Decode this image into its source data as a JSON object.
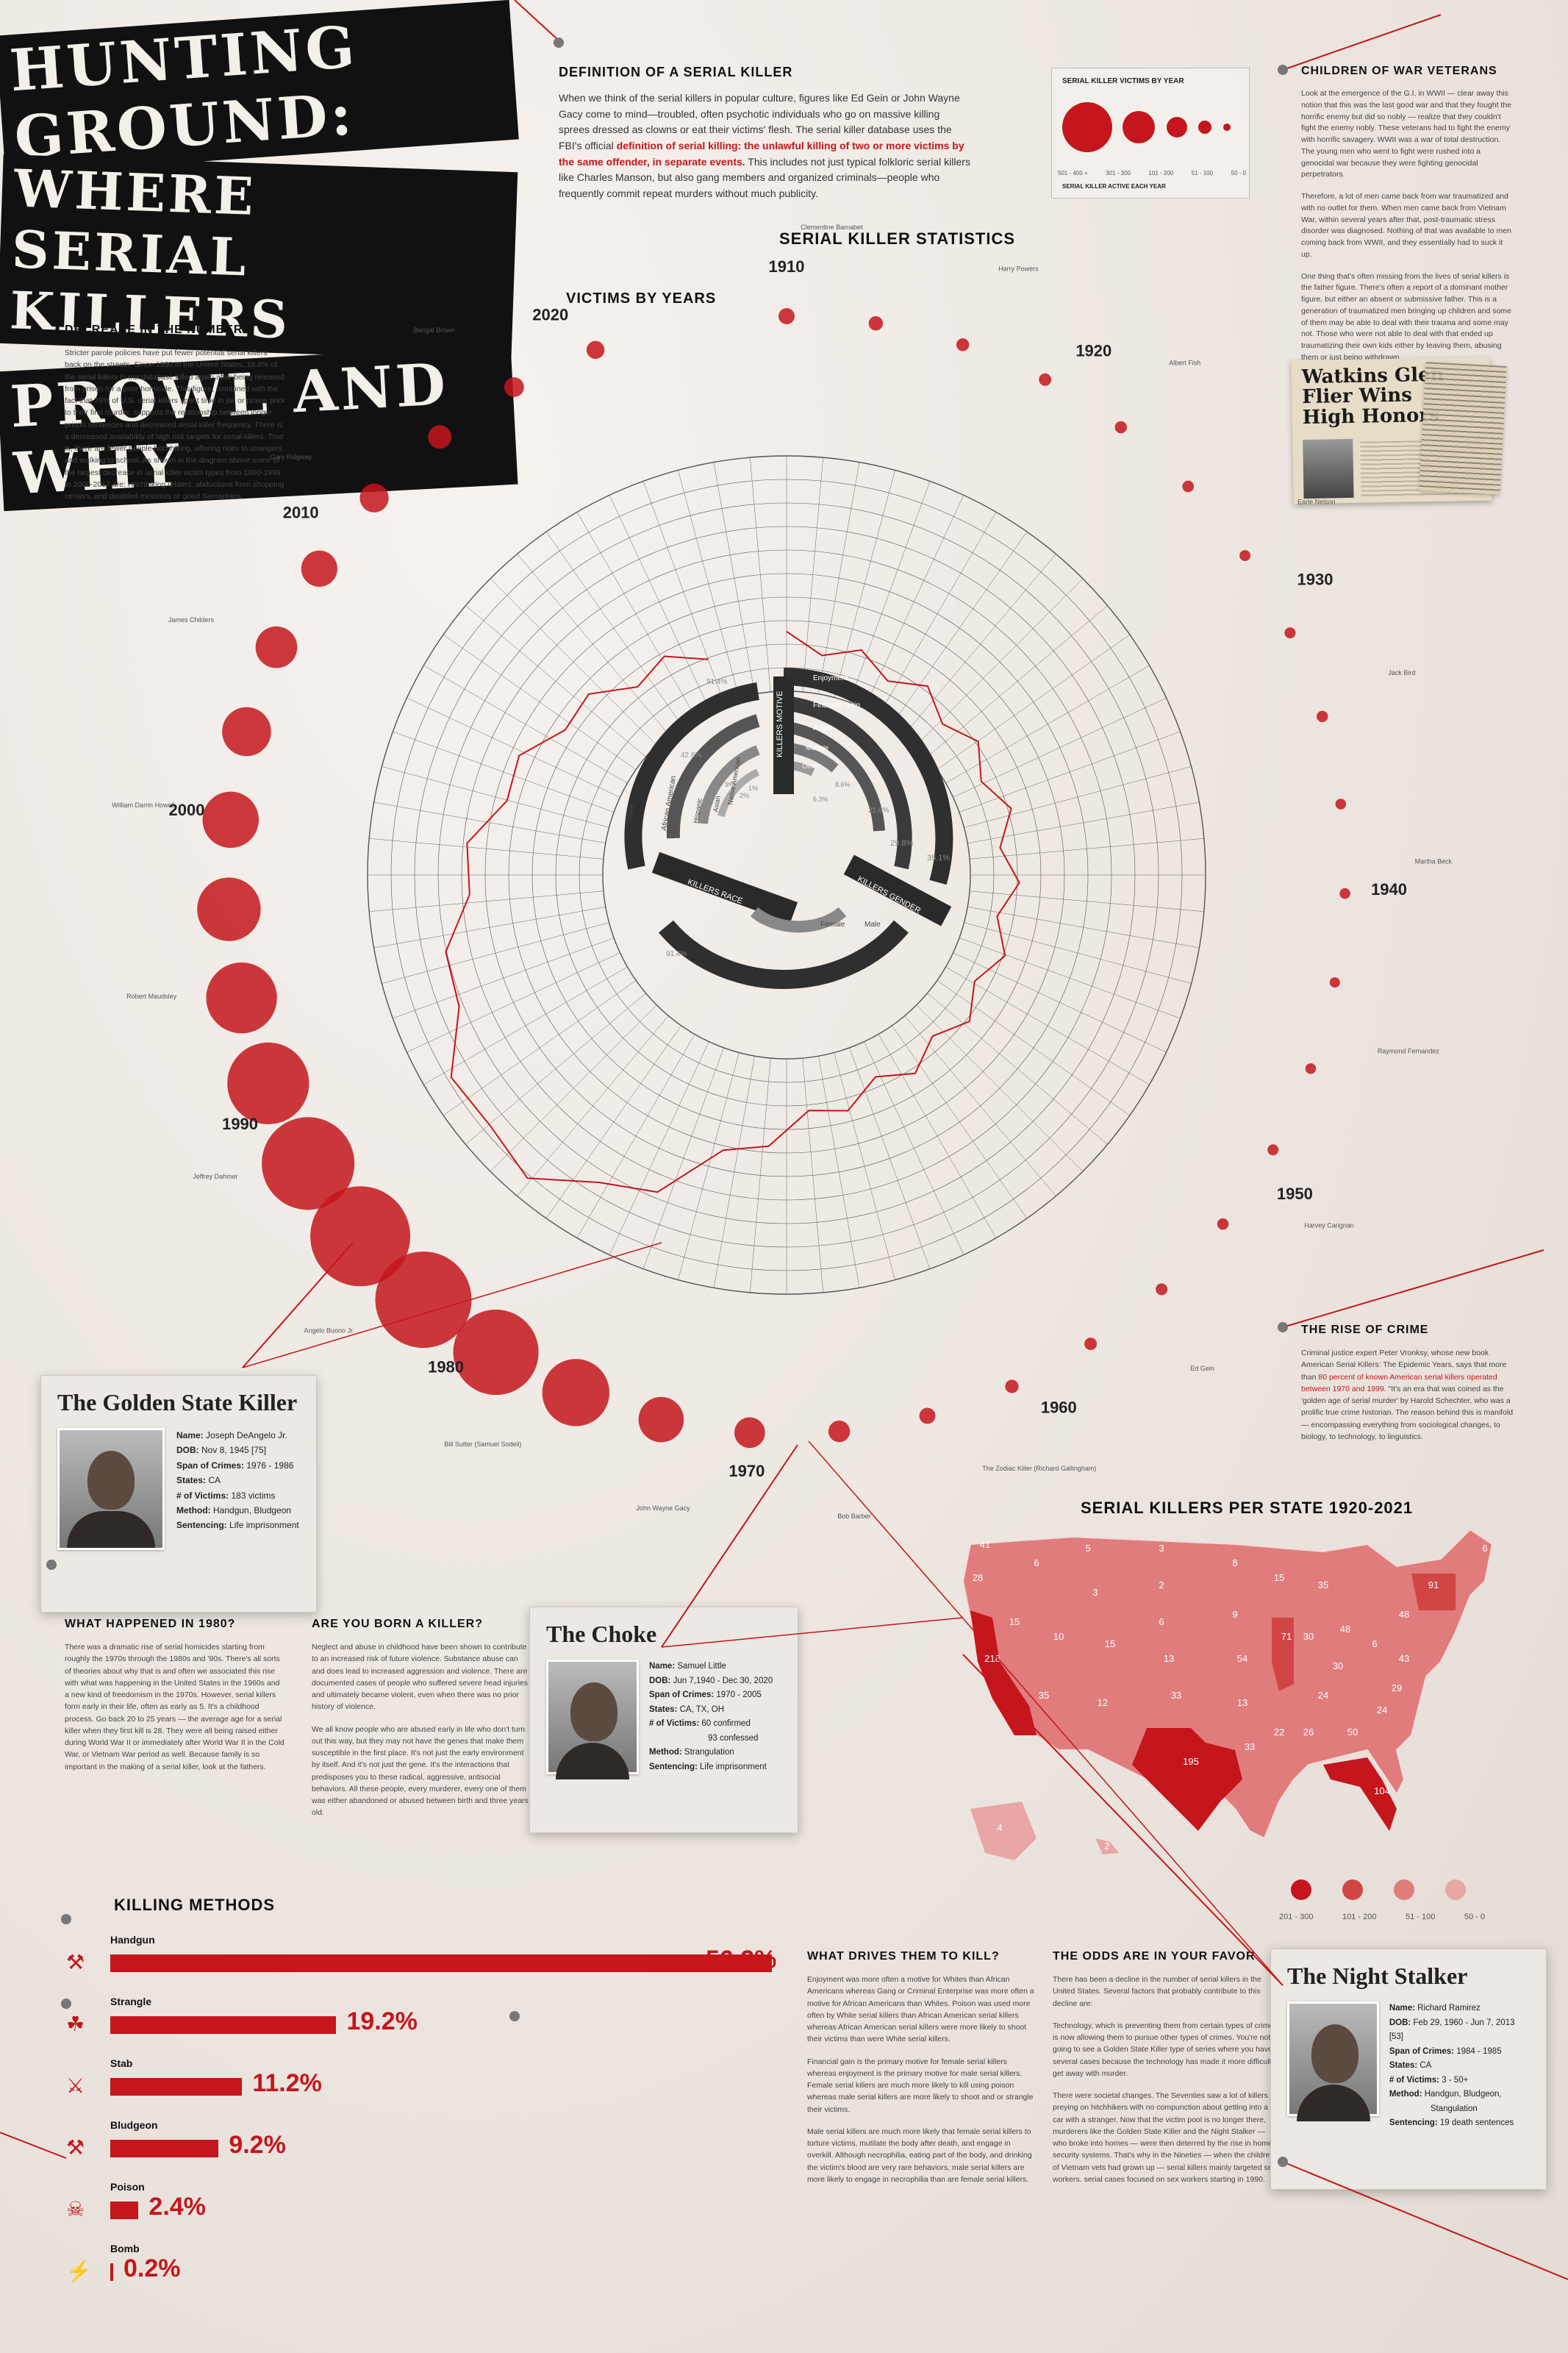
{
  "title": {
    "line1": "HUNTING GROUND:",
    "line2": "WHERE SERIAL KILLERS",
    "line3": "PROWL AND WHY"
  },
  "definition": {
    "heading": "DEFINITION OF A SERIAL KILLER",
    "text_a": "When we think of the serial killers in popular culture, figures like Ed Gein or John Wayne Gacy come to mind—troubled, often psychotic individuals who go on massive killing sprees dressed as clowns or eat their victims' flesh. The serial killer database uses the FBI's official ",
    "text_red": "definition  of serial killing: the unlawful killing of two or more victims by the same offender, in separate events.",
    "text_b": " This includes not just typical folkloric serial killers like Charles Manson, but also gang members and organized criminals—people who frequently commit repeat murders without much publicity."
  },
  "legend": {
    "title": "SERIAL KILLER VICTIMS BY YEAR",
    "labels": [
      "501 - 400 +",
      "301 - 300",
      "101 - 200",
      "51 - 100",
      "50 - 0"
    ],
    "footer": "SERIAL KILLER ACTIVE EACH YEAR"
  },
  "veterans": {
    "heading": "CHILDREN OF WAR VETERANS",
    "p1": "Look at the emergence of the G.I. in WWII — clear away this notion that this was the last good war and that they fought the horrific enemy but did so nobly — realize that they couldn't fight the enemy nobly. These veterans had to fight the enemy with horrific savagery. WWII was a war of total destruction. The young men who went to fight were rushed into a genocidal war because they were fighting genocidal perpetrators.",
    "p2": "Therefore, a lot of men came back from war traumatized and with no outlet for them. When men came back from Vietnam War, within several years after that, post-traumatic stress disorder was diagnosed. Nothing of that was available to men coming back from WWII, and they essentially had to suck it up.",
    "p3": "One thing that's often missing from the lives of serial killers is the father figure. There's often a report of a dominant mother figure, but either an absent or submissive father. This is a generation of traumatized men bringing up children and some of them may be able to deal with their trauma and some may not. Those who were not able to deal with that ended up traumatizing their own kids either by leaving them, abusing them or just being withdrawn."
  },
  "newspaper": {
    "headline1": "Watkins Glen",
    "headline2": "Flier Wins",
    "headline3": "High Honors"
  },
  "decrease": {
    "heading": "DECREASE IN THE NUMBERS",
    "text": "Stricter parole policies have put fewer potential serial killers back on the streets. Since 1950 in the United States, 16.8% of the serial killers in our database killed again after being released from prison for a prior homicide. This figure, combined with the fact that 79% of U.S. serial killers spent time in jail or prison prior to their first murder, supports the relationship between longer prison sentences and decreased serial killer frequency. There is a decreased availability of high risk targets for serial killers. That is, there are fewer people hitchhiking, offering rides to strangers, and walking to school. As shown in the diagram above some of the largest decrease in serial killer victim types from 1980-1999 to 2000-2017 are: Hitchhiking related, abductions from shopping centers, and disabled motorists or good Samaritans."
  },
  "stats": {
    "heading": "SERIAL KILLER STATISTICS",
    "victims_heading": "VICTIMS BY YEARS",
    "decade_labels": [
      "1910",
      "1920",
      "1930",
      "1940",
      "1950",
      "1960",
      "1970",
      "1980",
      "1990",
      "2000",
      "2010",
      "2020"
    ],
    "motive_title": "KILLERS MOTIVE",
    "race_title": "KILLERS RACE",
    "gender_title": "KILLERS GENDER",
    "motive_items": [
      {
        "label": "Enjoyment",
        "value": "35.1%"
      },
      {
        "label": "Financial Gain",
        "value": "29.8%"
      },
      {
        "label": "Anger",
        "value": "21.6%"
      },
      {
        "label": "Multiple",
        "value": "8.6%"
      },
      {
        "label": "Other",
        "value": "6.3%"
      }
    ],
    "race_items": [
      {
        "label": "White",
        "value": "91.4%"
      },
      {
        "label": "African American",
        "value": "42.6%"
      },
      {
        "label": "Hispanic",
        "value": "9%"
      },
      {
        "label": "Asian",
        "value": "2%"
      },
      {
        "label": "Native American",
        "value": "1%"
      }
    ],
    "gender_items": [
      {
        "label": "Male",
        "value": "91.4%"
      },
      {
        "label": "Female",
        "value": "8.6%"
      }
    ],
    "killer_names": [
      "Clementine Barnabet",
      "Harry Powers",
      "Albert Fish",
      "Earle Nelson",
      "Jack Bird",
      "Martha Beck",
      "Raymond Fernandez",
      "Harvey Carignan",
      "Ed Gein",
      "The Zodiac Killer (Richard Gallingham)",
      "Bob Barber",
      "John Wayne Gacy",
      "Bill Sutter (Samuel Sodeii)",
      "Angelo Buono Jr.",
      "Jeffrey Dahmer",
      "Robert Maudsley",
      "William Darrin Howell",
      "James Childers",
      "Gary Ridgway",
      "Bengal Brown"
    ]
  },
  "chart_data": {
    "type": "scatter",
    "title": "VICTIMS BY YEARS",
    "xlabel": "",
    "ylabel": "",
    "x": [
      1910,
      1913,
      1916,
      1919,
      1922,
      1925,
      1928,
      1931,
      1934,
      1937,
      1940,
      1943,
      1946,
      1949,
      1952,
      1955,
      1958,
      1961,
      1964,
      1967,
      1970,
      1973,
      1976,
      1979,
      1982,
      1985,
      1988,
      1991,
      1994,
      1997,
      2000,
      2003,
      2006,
      2009,
      2012,
      2015,
      2018,
      2021
    ],
    "series": [
      {
        "values": [
          40,
          30,
          22,
          20,
          18,
          15,
          12,
          12,
          14,
          10,
          10,
          8,
          10,
          12,
          14,
          16,
          20,
          25,
          40,
          70,
          120,
          200,
          320,
          420,
          480,
          500,
          460,
          400,
          340,
          300,
          260,
          220,
          180,
          150,
          110,
          80,
          60,
          50
        ]
      }
    ],
    "xlim": [
      1910,
      2021
    ],
    "grid": true,
    "legend": "top-right"
  },
  "golden_state": {
    "title": "The Golden State Killer",
    "name": "Joseph DeAngelo Jr.",
    "dob": "Nov 8, 1945 [75]",
    "span": "1976 - 1986",
    "states": "CA",
    "victims": "183  victims",
    "method": "Handgun, Bludgeon",
    "sentencing": "Life imprisonment"
  },
  "choke": {
    "title": "The Choke",
    "name": "Samuel Little",
    "dob": "Jun 7,1940 - Dec 30, 2020",
    "span": "1970 - 2005",
    "states": "CA, TX, OH",
    "victims": "60 confirmed",
    "victims2": "93 confessed",
    "method": "Strangulation",
    "sentencing": "Life imprisonment"
  },
  "night_stalker": {
    "title": "The Night Stalker",
    "name": "Richard Ramirez",
    "dob": "Feb 29, 1960 - Jun 7, 2013 [53]",
    "span": "1984 - 1985",
    "states": "CA",
    "victims": "3 - 50+",
    "method": "Handgun, Bludgeon,",
    "method2": "Stangulation",
    "sentencing": "19 death sentences"
  },
  "card_labels": {
    "name": "Name:",
    "dob": "DOB:",
    "span": "Span of Crimes:",
    "states": "States:",
    "victims": "# of Victims:",
    "method": "Method:",
    "sentencing": "Sentencing:"
  },
  "what_1980": {
    "heading": "WHAT HAPPENED IN 1980?",
    "text": "There was a dramatic rise of serial homicides starting from roughly the 1970s through the 1980s and '90s. There's all sorts of theories about why that is and often we associated this rise with what was happening in the United States in the 1960s and a new kind of freedomism in the 1970s. However, serial killers form early in their life, often as early as 5. It's a childhood process. Go back 20 to 25 years — the average age for a serial killer when they first kill is 28. They were all being raised either during World War II or immediately after World War II in the Cold War, or Vietnam War period as well. Because family is so important in the making of a serial killer, look at the fathers."
  },
  "born_killer": {
    "heading": "ARE YOU BORN A KILLER?",
    "p1": "Neglect and abuse in childhood have been shown to contribute to an increased risk of future violence. Substance abuse can and does lead to increased aggression and violence. There are documented cases of people who suffered severe head injuries and ultimately became violent, even when there was no prior history of violence.",
    "p2": "We all know people who are abused early in life who don't turn out this way, but they may not have the genes that make them susceptible in the first place. It's not just the early environment by itself. And it's not just the gene. It's the interactions that predisposes you to these radical, aggressive, antisocial behaviors. All these people, every murderer, every one of them was either abandoned or abused between birth and three years old."
  },
  "rise_crime": {
    "heading": "THE RISE OF CRIME",
    "text_a": "Criminal justice expert Peter Vronksy, whose new book American Serial Killers: The Epidemic Years, says that more than ",
    "text_red": "80 percent of known American serial killers operated between 1970 and 1999.",
    "text_b": " \"It's an era that was coined as the 'golden age of serial murder' by Harold Schechter, who was a prolific true crime historian. The reason behind this is manifold — encompassing everything from sociological changes, to biology, to technology, to linguistics."
  },
  "state_map": {
    "heading": "SERIAL KILLERS PER STATE 1920-2021",
    "legend": [
      "201 - 300",
      "101 - 200",
      "51 - 100",
      "50 - 0"
    ],
    "values": [
      {
        "state": "WA",
        "value": "41"
      },
      {
        "state": "OR",
        "value": "28"
      },
      {
        "state": "CA",
        "value": "218"
      },
      {
        "state": "NV",
        "value": "15"
      },
      {
        "state": "ID",
        "value": "6"
      },
      {
        "state": "MT",
        "value": "5"
      },
      {
        "state": "WY",
        "value": "3"
      },
      {
        "state": "UT",
        "value": "10"
      },
      {
        "state": "AZ",
        "value": "35"
      },
      {
        "state": "CO",
        "value": "15"
      },
      {
        "state": "NM",
        "value": "12"
      },
      {
        "state": "ND",
        "value": "3"
      },
      {
        "state": "SD",
        "value": "2"
      },
      {
        "state": "NE",
        "value": "6"
      },
      {
        "state": "KS",
        "value": "13"
      },
      {
        "state": "OK",
        "value": "33"
      },
      {
        "state": "TX",
        "value": "195"
      },
      {
        "state": "MN",
        "value": "8"
      },
      {
        "state": "IA",
        "value": "9"
      },
      {
        "state": "MO",
        "value": "54"
      },
      {
        "state": "AR",
        "value": "13"
      },
      {
        "state": "LA",
        "value": "33"
      },
      {
        "state": "WI",
        "value": "15"
      },
      {
        "state": "IL",
        "value": "71"
      },
      {
        "state": "MI",
        "value": "35"
      },
      {
        "state": "IN",
        "value": "30"
      },
      {
        "state": "OH",
        "value": "48"
      },
      {
        "state": "KY",
        "value": "30"
      },
      {
        "state": "TN",
        "value": "24"
      },
      {
        "state": "MS",
        "value": "22"
      },
      {
        "state": "AL",
        "value": "26"
      },
      {
        "state": "GA",
        "value": "50"
      },
      {
        "state": "FL",
        "value": "104"
      },
      {
        "state": "SC",
        "value": "24"
      },
      {
        "state": "NC",
        "value": "29"
      },
      {
        "state": "VA",
        "value": "43"
      },
      {
        "state": "WV",
        "value": "6"
      },
      {
        "state": "PA",
        "value": "48"
      },
      {
        "state": "NY",
        "value": "91"
      },
      {
        "state": "ME",
        "value": "6"
      },
      {
        "state": "AK",
        "value": "4"
      },
      {
        "state": "HI",
        "value": "2"
      }
    ]
  },
  "methods": {
    "heading": "KILLING METHODS",
    "items": [
      {
        "label": "Handgun",
        "value": "56.2%",
        "pct": 56.2
      },
      {
        "label": "Strangle",
        "value": "19.2%",
        "pct": 19.2
      },
      {
        "label": "Stab",
        "value": "11.2%",
        "pct": 11.2
      },
      {
        "label": "Bludgeon",
        "value": "9.2%",
        "pct": 9.2
      },
      {
        "label": "Poison",
        "value": "2.4%",
        "pct": 2.4
      },
      {
        "label": "Bomb",
        "value": "0.2%",
        "pct": 0.2
      }
    ]
  },
  "drives": {
    "heading": "WHAT DRIVES THEM TO KILL?",
    "p1": "Enjoyment was more often a motive for Whites than African Americans whereas Gang or Criminal Enterprise was more often a motive for African Americans than Whites. Poison was used more often by White serial killers than African American serial killers whereas African American serial killers were more likely to shoot their victims than were White serial killers.",
    "p2": "Financial gain is the primary motive for female serial killers whereas enjoyment is the primary motive for male serial killers. Female serial killers are much more likely to kill using poison whereas male serial killers are more likely to shoot and or strangle their victims.",
    "p3": "Male serial killers are much more likely that female serial killers to torture victims, mutilate the body after death, and engage in overkill. Although necrophilia, eating part of the body, and drinking the victim's blood are very rare behaviors, male serial killers are more likely to engage in necrophilia than are female serial killers."
  },
  "odds": {
    "heading": "THE ODDS ARE IN YOUR FAVOR",
    "p1": "There has been a decline in the number of serial killers in the United States. Several factors that probably contribute to this decline are:",
    "p2": "Technology, which is preventing them from certain types of crimes, is now allowing them to pursue other types of crimes. You're not going to see a Golden State Killer type of series where you have several cases because the technology has made it more difficult to get away with murder.",
    "p3": "There were societal changes. The Seventies saw a lot of killers preying on hitchhikers with no compunction about getting into a car with a stranger. Now that the victim pool is no longer there, murderers like the Golden State Killer and the Night Stalker — who broke into homes — were then deterred by the rise in home security systems. That's why in the Nineties — when the children of Vietnam vets had grown up — serial killers mainly targeted sex workers. serial cases focused on sex workers starting in 1990."
  },
  "colors": {
    "accent": "#c4161c",
    "dark": "#2b2b2b",
    "paper": "#efe9e3"
  }
}
